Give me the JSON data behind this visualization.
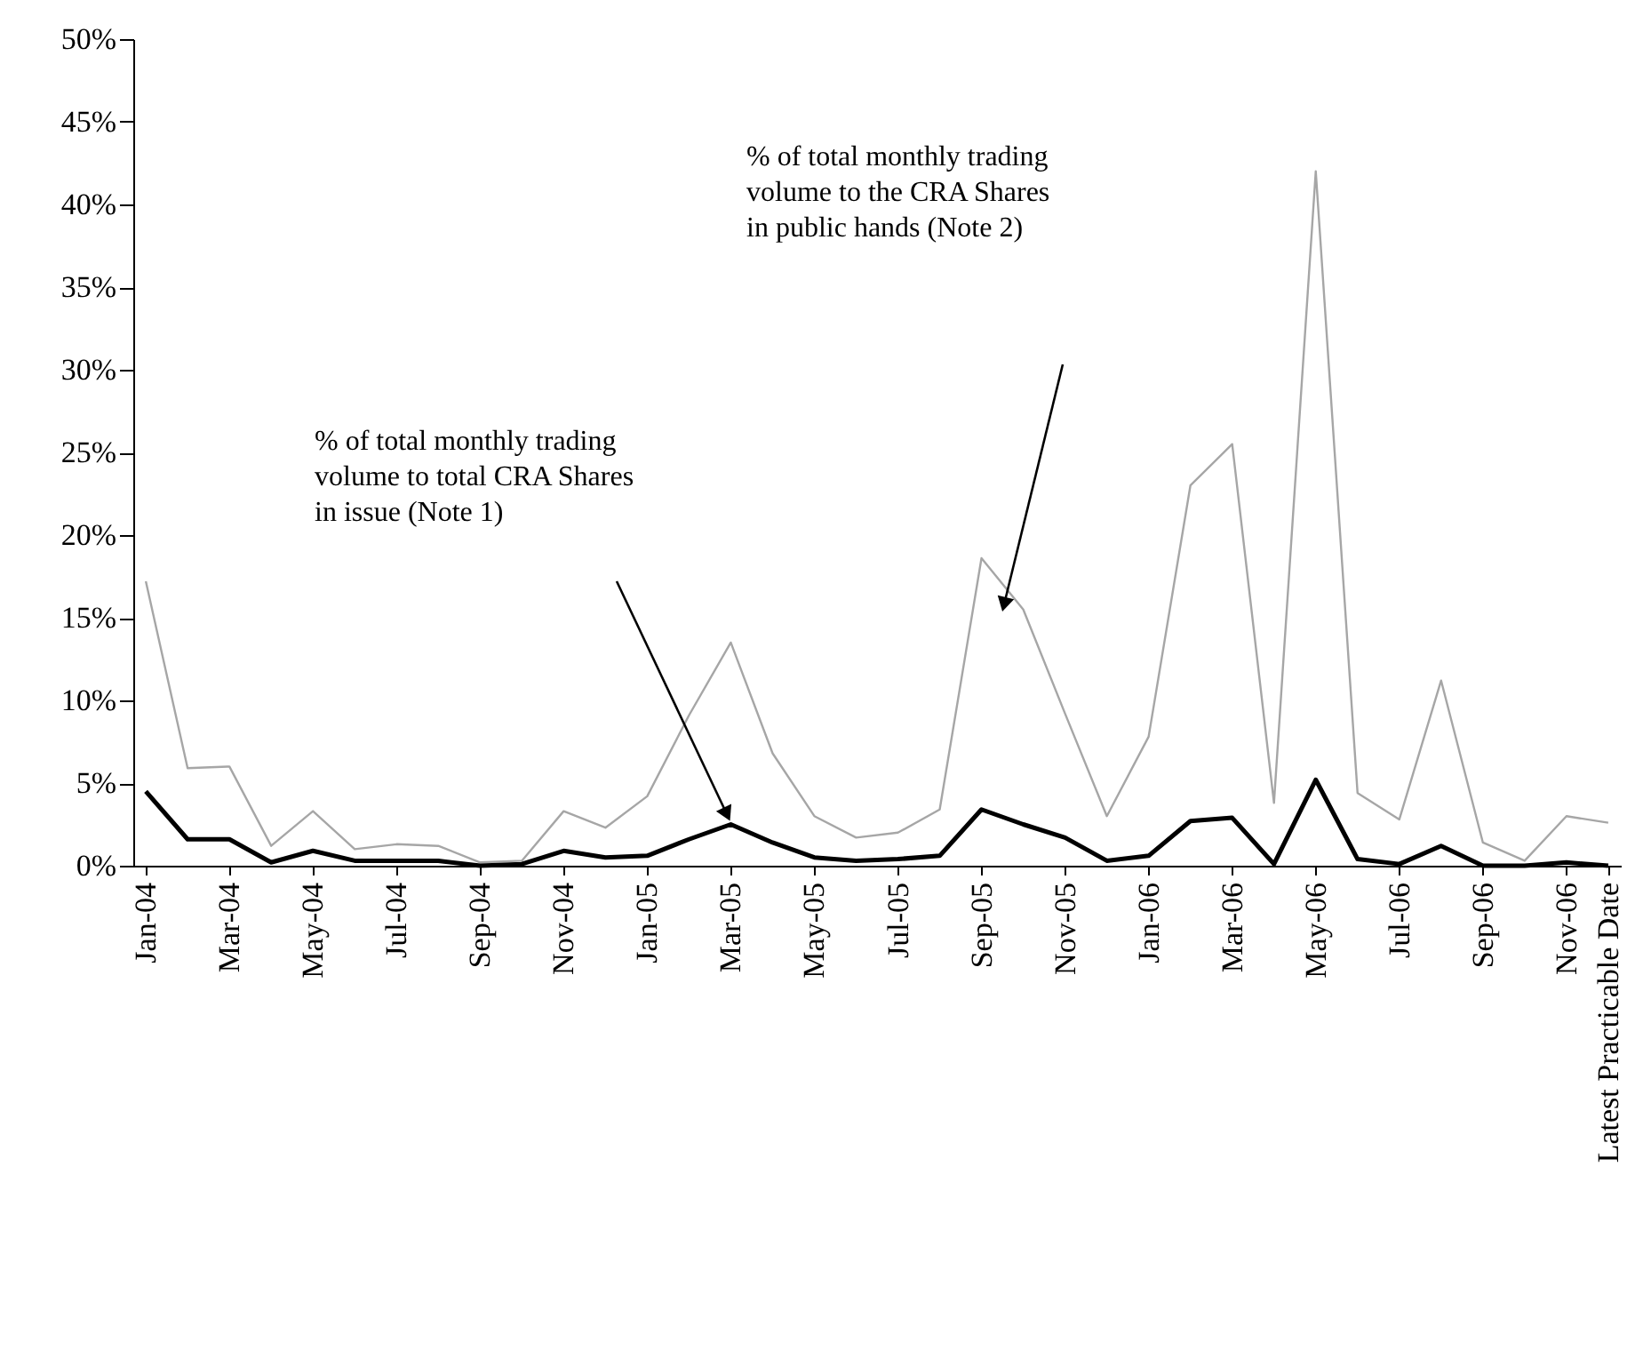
{
  "chart_data": {
    "type": "line",
    "categories": [
      "Jan-04",
      null,
      "Mar-04",
      null,
      "May-04",
      null,
      "Jul-04",
      null,
      "Sep-04",
      null,
      "Nov-04",
      null,
      "Jan-05",
      null,
      "Mar-05",
      null,
      "May-05",
      null,
      "Jul-05",
      null,
      "Sep-05",
      null,
      "Nov-05",
      null,
      "Jan-06",
      null,
      "Mar-06",
      null,
      "May-06",
      null,
      "Jul-06",
      null,
      "Sep-06",
      null,
      "Nov-06",
      "Latest Practicable Date"
    ],
    "series": [
      {
        "color": "#a6a6a6",
        "values": [
          17.2,
          5.9,
          6.0,
          1.2,
          3.3,
          1.0,
          1.3,
          1.2,
          0.2,
          0.3,
          3.3,
          2.3,
          4.2,
          9.1,
          13.5,
          6.8,
          3.0,
          1.7,
          2.0,
          3.4,
          18.6,
          15.5,
          9.2,
          3.0,
          7.8,
          23.0,
          25.5,
          3.8,
          42.0,
          4.4,
          2.8,
          11.2,
          1.4,
          0.3,
          3.0,
          2.6
        ]
      },
      {
        "color": "#000000",
        "values": [
          4.5,
          1.6,
          1.6,
          0.2,
          0.9,
          0.3,
          0.3,
          0.3,
          0.0,
          0.1,
          0.9,
          0.5,
          0.6,
          1.6,
          2.5,
          1.4,
          0.5,
          0.3,
          0.4,
          0.6,
          3.4,
          2.5,
          1.7,
          0.3,
          0.6,
          2.7,
          2.9,
          0.1,
          5.2,
          0.4,
          0.1,
          1.2,
          0.0,
          0.0,
          0.2,
          0.0
        ]
      }
    ],
    "ylim": [
      0,
      50
    ],
    "yticks": [
      {
        "value": 0,
        "label": "0%"
      },
      {
        "value": 5,
        "label": "5%"
      },
      {
        "value": 10,
        "label": "10%"
      },
      {
        "value": 15,
        "label": "15%"
      },
      {
        "value": 20,
        "label": "20%"
      },
      {
        "value": 25,
        "label": "25%"
      },
      {
        "value": 30,
        "label": "30%"
      },
      {
        "value": 35,
        "label": "35%"
      },
      {
        "value": 40,
        "label": "40%"
      },
      {
        "value": 45,
        "label": "45%"
      },
      {
        "value": 50,
        "label": "50%"
      }
    ],
    "annotations": [
      "% of total monthly trading volume to total CRA Shares in issue (Note 1)",
      "% of total monthly trading volume to the CRA Shares in public hands (Note 2)"
    ],
    "grid": false,
    "legend": false,
    "marker": "none",
    "line_style": "solid"
  }
}
